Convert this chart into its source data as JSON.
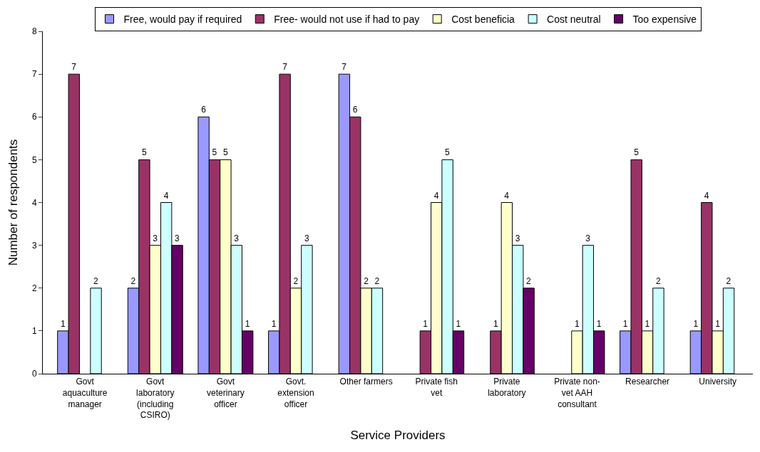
{
  "chart_data": {
    "type": "bar",
    "xlabel": "Service Providers",
    "ylabel": "Number of respondents",
    "categories": [
      "Govt\naquaculture\nmanager",
      "Govt\nlaboratory\n(including\nCSIRO)",
      "Govt\nveterinary\nofficer",
      "Govt.\nextension\nofficer",
      "Other farmers",
      "Private fish\nvet",
      "Private\nlaboratory",
      "Private non-\nvet AAH\nconsultant",
      "Researcher",
      "University"
    ],
    "series": [
      {
        "name": "Free, would pay if required",
        "color": "#9999ff",
        "values": [
          1,
          2,
          6,
          1,
          7,
          null,
          null,
          null,
          1,
          1
        ]
      },
      {
        "name": "Free- would not use if had to pay",
        "color": "#993366",
        "values": [
          7,
          5,
          5,
          7,
          6,
          1,
          1,
          null,
          5,
          4
        ]
      },
      {
        "name": "Cost beneficia",
        "color": "#ffffcc",
        "values": [
          null,
          3,
          5,
          2,
          2,
          4,
          4,
          1,
          1,
          1
        ]
      },
      {
        "name": "Cost neutral",
        "color": "#ccffff",
        "values": [
          2,
          4,
          3,
          3,
          2,
          5,
          3,
          3,
          2,
          2
        ]
      },
      {
        "name": "Too expensive",
        "color": "#660066",
        "values": [
          null,
          3,
          1,
          null,
          null,
          1,
          2,
          1,
          null,
          null
        ]
      }
    ],
    "ylim": [
      0,
      8
    ],
    "yticks": [
      0,
      1,
      2,
      3,
      4,
      5,
      6,
      7,
      8
    ],
    "legend": "top",
    "data_labels": true
  }
}
